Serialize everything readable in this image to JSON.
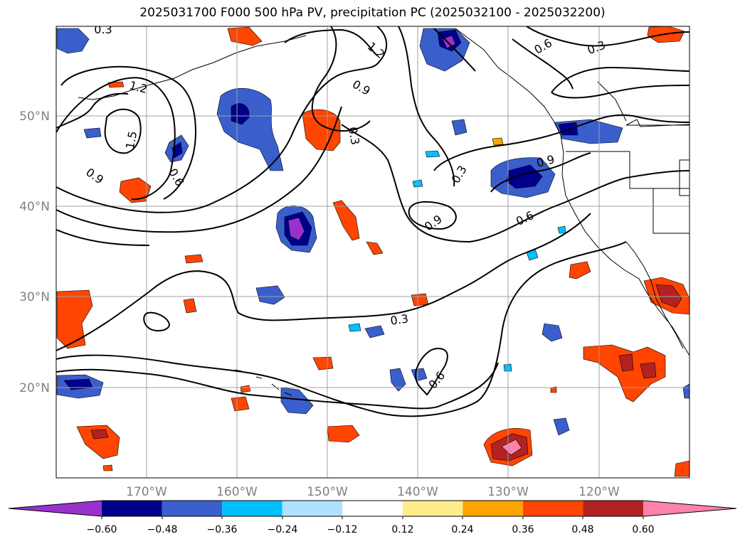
{
  "map": {
    "title": "2025031700 F000 500 hPa PV, precipitation PC (2025032100 - 2025032200)",
    "extent": {
      "lon_min": -180,
      "lon_max": -110,
      "lat_min": 10,
      "lat_max": 60
    },
    "lon_ticks": [
      {
        "value": -170,
        "label": "170°W"
      },
      {
        "value": -160,
        "label": "160°W"
      },
      {
        "value": -150,
        "label": "150°W"
      },
      {
        "value": -140,
        "label": "140°W"
      },
      {
        "value": -130,
        "label": "130°W"
      },
      {
        "value": -120,
        "label": "120°W"
      }
    ],
    "lat_ticks": [
      {
        "value": 50,
        "label": "50°N"
      },
      {
        "value": 40,
        "label": "40°N"
      },
      {
        "value": 30,
        "label": "30°N"
      },
      {
        "value": 20,
        "label": "20°N"
      }
    ],
    "contour_labels": [
      "0.3",
      "1.2",
      "0.9",
      "1.2",
      "1.5",
      "0.9",
      "0.6",
      "0.3",
      "0.6",
      "0.3",
      "0.3",
      "0.9",
      "0.9",
      "0.6",
      "0.3",
      "0.6"
    ],
    "colorbar": {
      "colors": [
        "#9932cc",
        "#00008b",
        "#3a5fcd",
        "#00bfff",
        "#b0e2ff",
        "#ffffff",
        "#ffec8b",
        "#ffa500",
        "#ff4500",
        "#b22222",
        "#ff82ab"
      ],
      "tick_labels": [
        "−0.60",
        "−0.48",
        "−0.36",
        "−0.24",
        "−0.12",
        "0.12",
        "0.24",
        "0.36",
        "0.48",
        "0.60"
      ]
    }
  }
}
